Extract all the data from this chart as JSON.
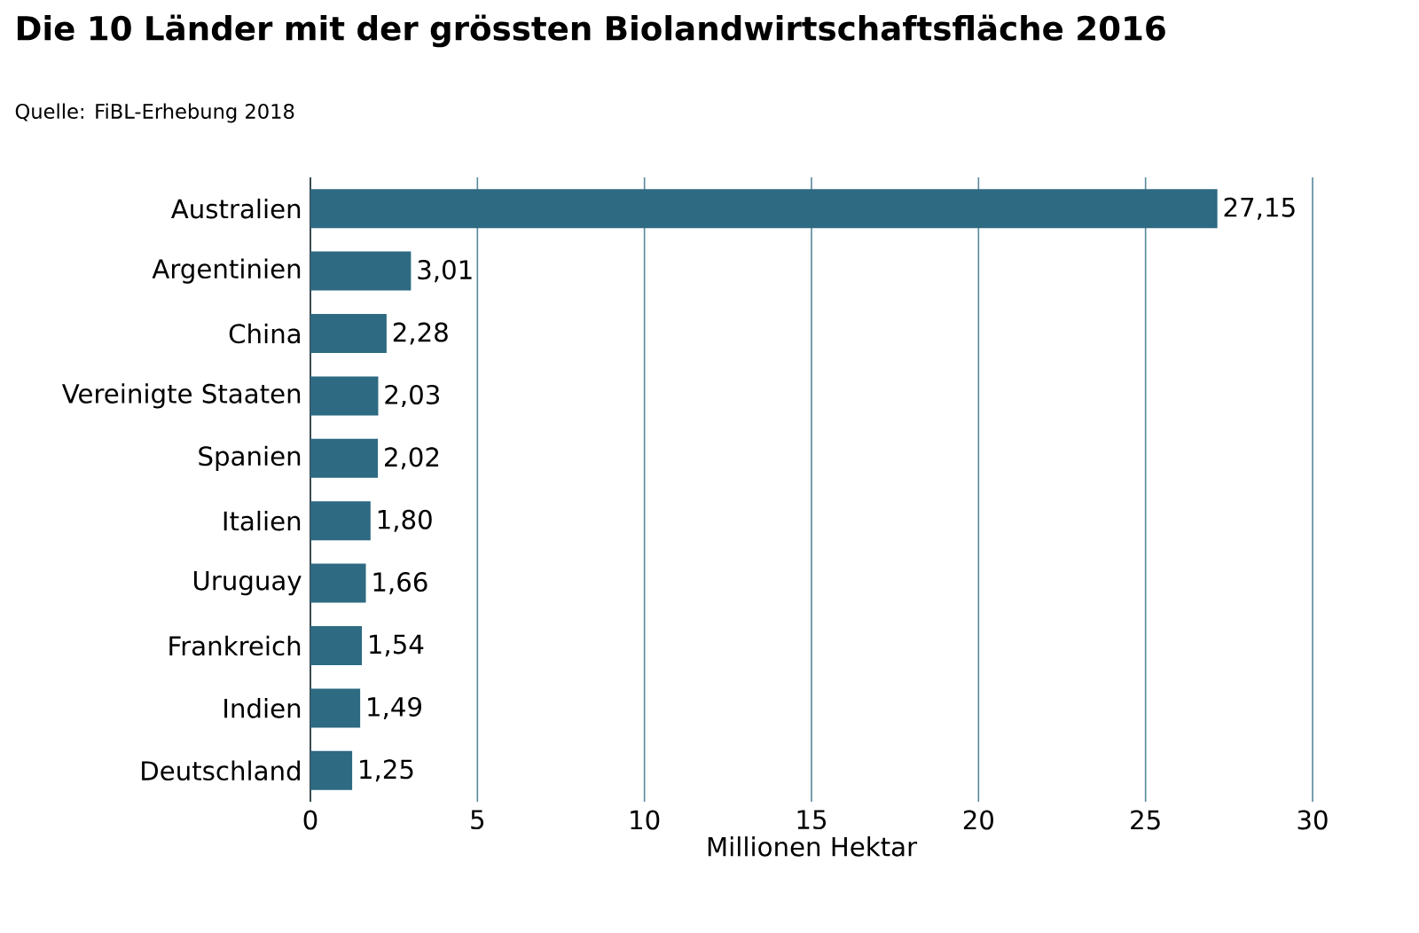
{
  "chart_data": {
    "type": "bar",
    "orientation": "horizontal",
    "title": "Die 10 Länder mit der grössten Biolandwirtschaftsfläche 2016",
    "annotations": [
      "Quelle: FiBL-Erhebung 2018"
    ],
    "categories": [
      "Australien",
      "Argentinien",
      "China",
      "Vereinigte Staaten",
      "Spanien",
      "Italien",
      "Uruguay",
      "Frankreich",
      "Indien",
      "Deutschland"
    ],
    "values": [
      27.15,
      3.01,
      2.28,
      2.03,
      2.02,
      1.8,
      1.66,
      1.54,
      1.49,
      1.25
    ],
    "value_labels": [
      "27,15",
      "3,01",
      "2,28",
      "2,03",
      "2,02",
      "1,80",
      "1,66",
      "1,54",
      "1,49",
      "1,25"
    ],
    "color": "#2e6a82",
    "xlabel": "Millionen Hektar",
    "xlim": [
      0,
      30
    ],
    "xticks": [
      0,
      5,
      10,
      15,
      20,
      25,
      30
    ],
    "grid": "x"
  }
}
